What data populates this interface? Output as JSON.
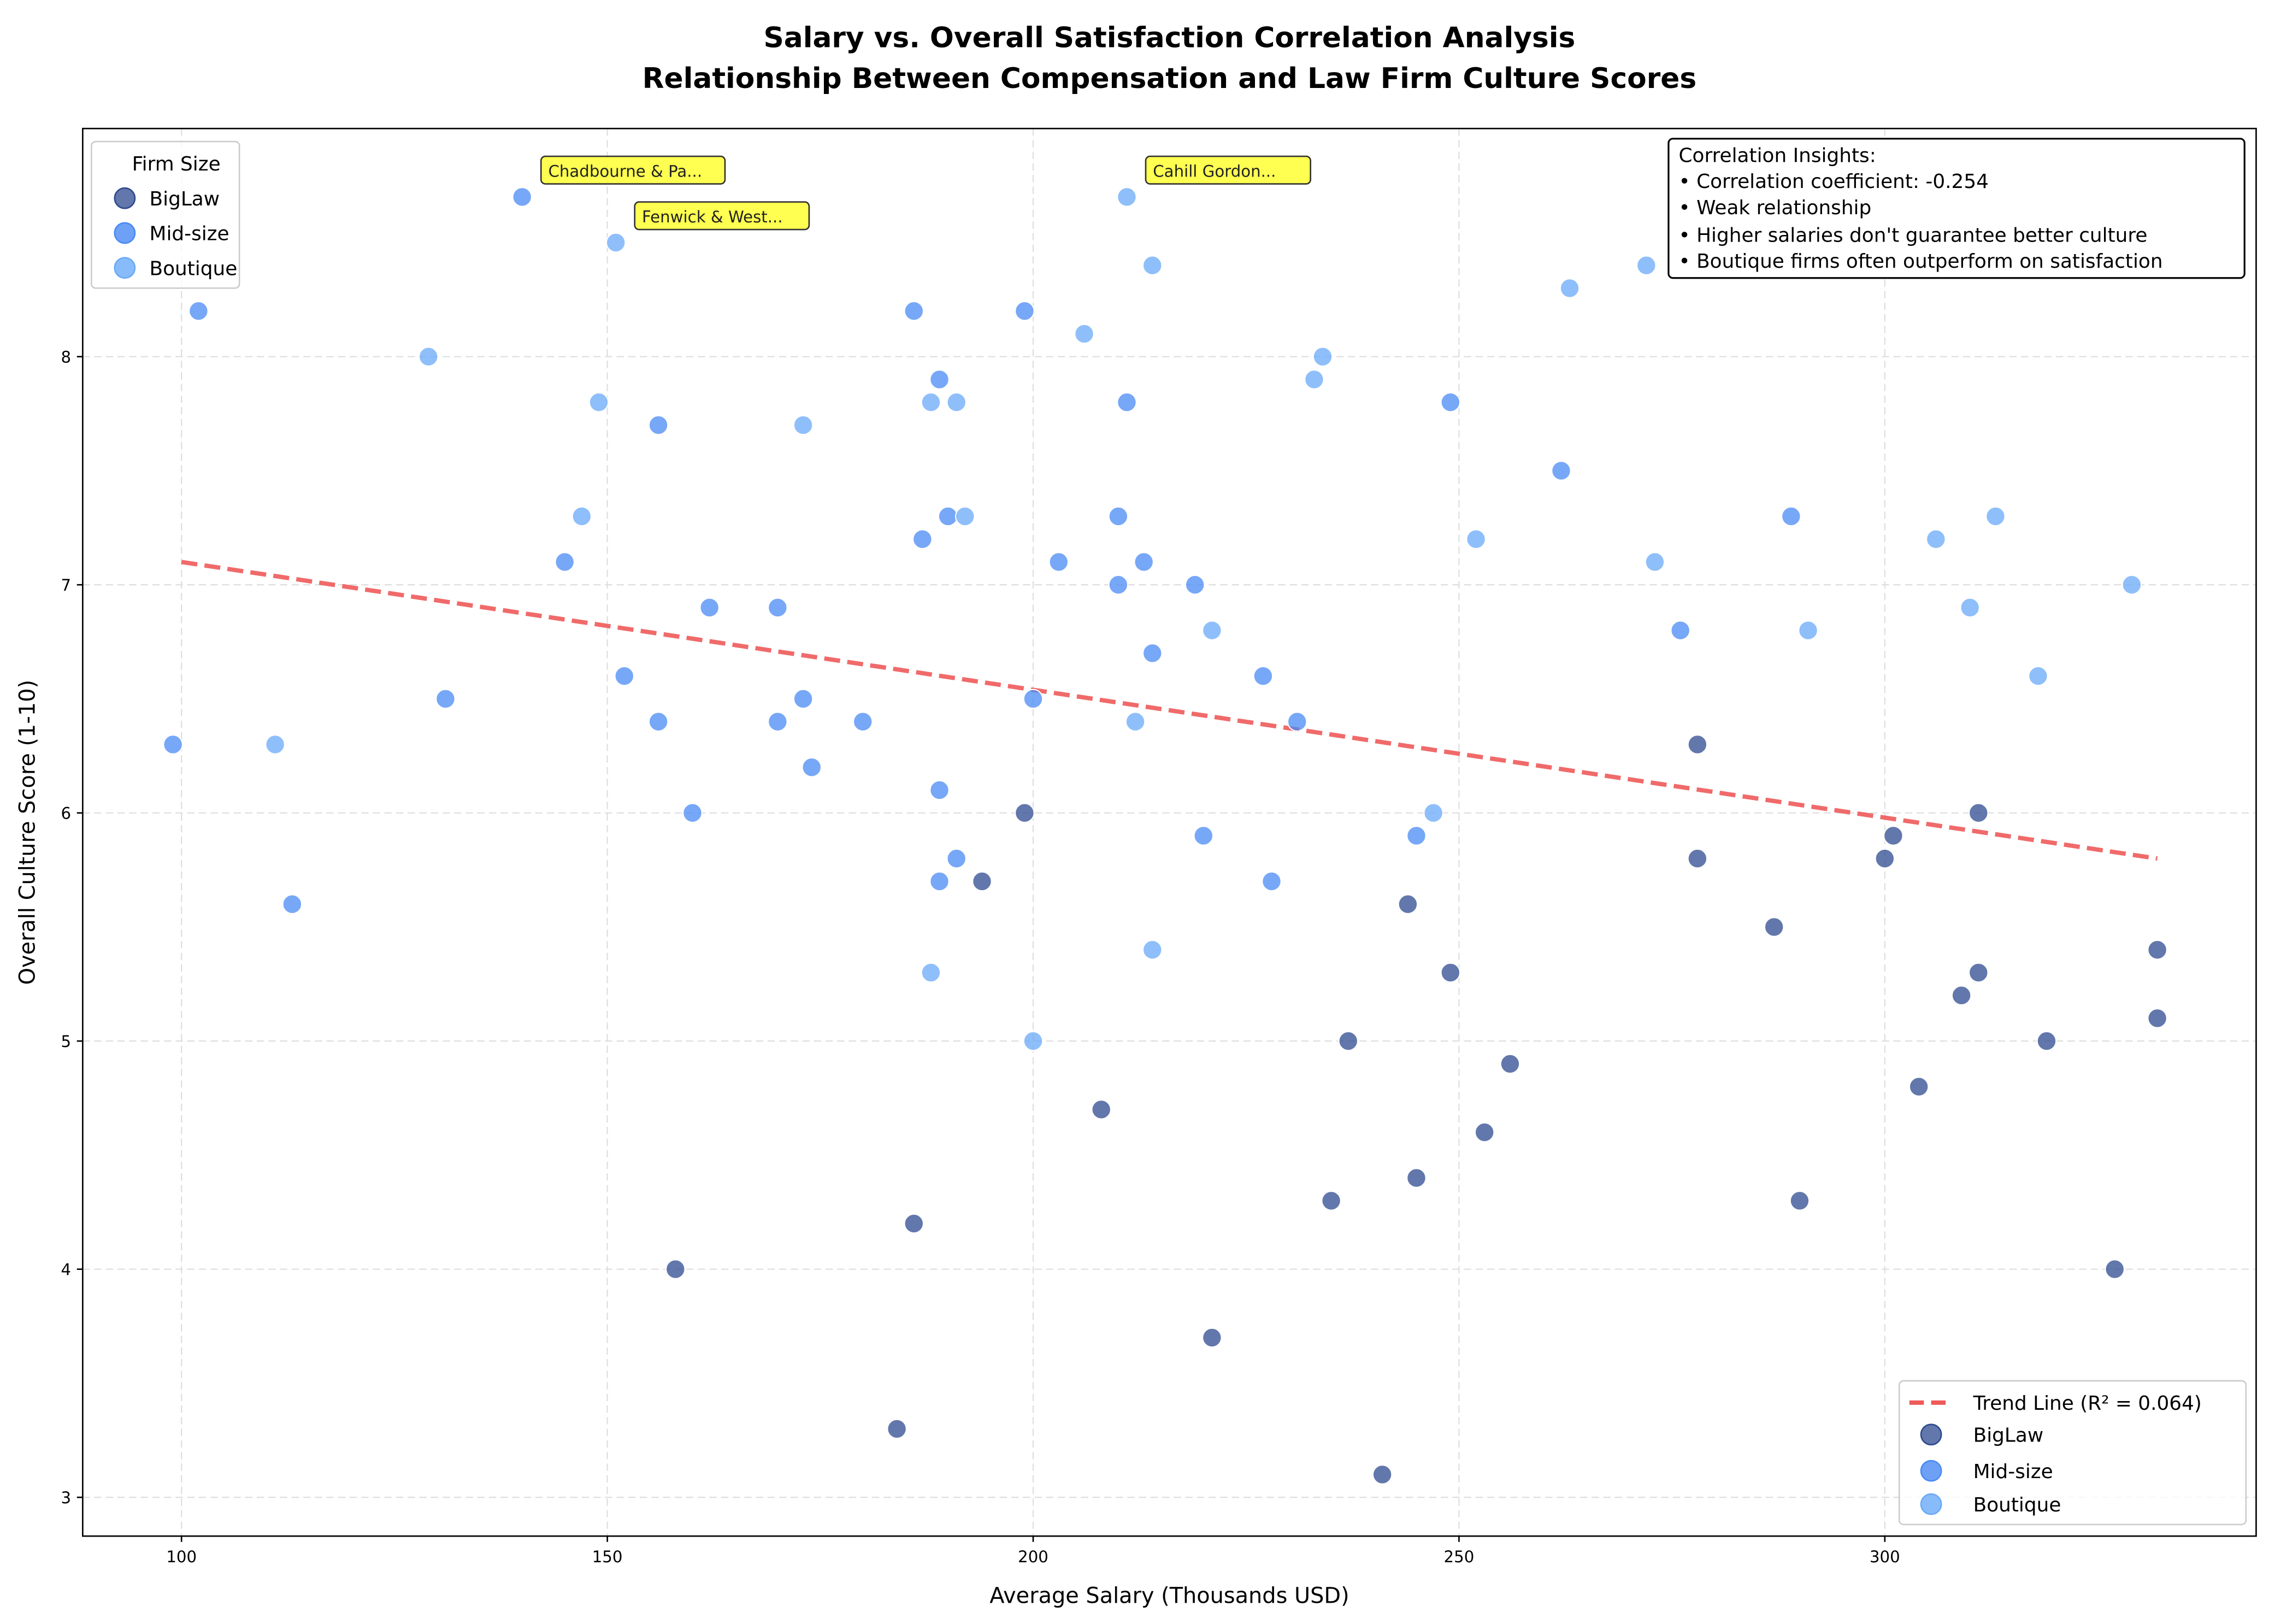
{
  "chart_data": {
    "type": "scatter",
    "title": "Salary vs. Overall Satisfaction Correlation Analysis",
    "subtitle": "Relationship Between Compensation and Law Firm Culture Scores",
    "xlabel": "Average Salary (Thousands USD)",
    "ylabel": "Overall Culture Score (1-10)",
    "xlim": [
      88.4,
      343.6
    ],
    "ylim": [
      2.83,
      9.0
    ],
    "xticks": [
      100,
      150,
      200,
      250,
      300
    ],
    "yticks": [
      3,
      4,
      5,
      6,
      7,
      8
    ],
    "grid": true,
    "legend_title": "Firm Size",
    "legend_placement": "top-left",
    "legend2_placement": "bottom-right",
    "series": [
      {
        "name": "BigLaw",
        "color": "#2e4a8f",
        "points": [
          [
            158,
            4.0
          ],
          [
            186,
            4.2
          ],
          [
            184,
            3.3
          ],
          [
            194,
            5.7
          ],
          [
            199,
            6.0
          ],
          [
            208,
            4.7
          ],
          [
            221,
            3.7
          ],
          [
            235,
            4.3
          ],
          [
            237,
            5.0
          ],
          [
            241,
            3.1
          ],
          [
            244,
            5.6
          ],
          [
            245,
            4.4
          ],
          [
            249,
            5.3
          ],
          [
            253,
            4.6
          ],
          [
            256,
            4.9
          ],
          [
            278,
            6.3
          ],
          [
            278,
            5.8
          ],
          [
            287,
            5.5
          ],
          [
            290,
            4.3
          ],
          [
            300,
            5.8
          ],
          [
            301,
            5.9
          ],
          [
            304,
            4.8
          ],
          [
            309,
            5.2
          ],
          [
            311,
            6.0
          ],
          [
            311,
            5.3
          ],
          [
            319,
            5.0
          ],
          [
            327,
            4.0
          ],
          [
            332,
            5.4
          ],
          [
            332,
            5.1
          ]
        ]
      },
      {
        "name": "Mid-size",
        "color": "#4a8af4",
        "points": [
          [
            99,
            6.3
          ],
          [
            102,
            8.2
          ],
          [
            113,
            5.6
          ],
          [
            131,
            6.5
          ],
          [
            140,
            8.7
          ],
          [
            145,
            7.1
          ],
          [
            152,
            6.6
          ],
          [
            156,
            7.7
          ],
          [
            156,
            6.4
          ],
          [
            160,
            6.0
          ],
          [
            162,
            6.9
          ],
          [
            170,
            6.9
          ],
          [
            170,
            6.4
          ],
          [
            173,
            6.5
          ],
          [
            174,
            6.2
          ],
          [
            180,
            6.4
          ],
          [
            186,
            8.2
          ],
          [
            187,
            7.2
          ],
          [
            189,
            5.7
          ],
          [
            189,
            6.1
          ],
          [
            189,
            7.9
          ],
          [
            190,
            7.3
          ],
          [
            191,
            5.8
          ],
          [
            199,
            8.2
          ],
          [
            200,
            6.5
          ],
          [
            203,
            7.1
          ],
          [
            210,
            7.3
          ],
          [
            210,
            7.0
          ],
          [
            211,
            7.8
          ],
          [
            213,
            7.1
          ],
          [
            214,
            6.7
          ],
          [
            219,
            7.0
          ],
          [
            220,
            5.9
          ],
          [
            227,
            6.6
          ],
          [
            228,
            5.7
          ],
          [
            231,
            6.4
          ],
          [
            245,
            5.9
          ],
          [
            249,
            7.8
          ],
          [
            262,
            7.5
          ],
          [
            276,
            6.8
          ],
          [
            289,
            7.3
          ]
        ]
      },
      {
        "name": "Boutique",
        "color": "#6aaaf8",
        "points": [
          [
            111,
            6.3
          ],
          [
            129,
            8.0
          ],
          [
            147,
            7.3
          ],
          [
            149,
            7.8
          ],
          [
            151,
            8.5
          ],
          [
            173,
            7.7
          ],
          [
            188,
            7.8
          ],
          [
            188,
            5.3
          ],
          [
            191,
            7.8
          ],
          [
            192,
            7.3
          ],
          [
            200,
            5.0
          ],
          [
            206,
            8.1
          ],
          [
            211,
            8.7
          ],
          [
            212,
            6.4
          ],
          [
            214,
            8.4
          ],
          [
            214,
            5.4
          ],
          [
            221,
            6.8
          ],
          [
            233,
            7.9
          ],
          [
            234,
            8.0
          ],
          [
            247,
            6.0
          ],
          [
            252,
            7.2
          ],
          [
            263,
            8.3
          ],
          [
            272,
            8.4
          ],
          [
            273,
            7.1
          ],
          [
            291,
            6.8
          ],
          [
            306,
            7.2
          ],
          [
            310,
            6.9
          ],
          [
            313,
            7.3
          ],
          [
            318,
            6.6
          ],
          [
            329,
            7.0
          ]
        ]
      }
    ],
    "trend_line": {
      "name": "Trend Line (R² = 0.064)",
      "color": "#ee5a5a",
      "x": [
        100,
        332
      ],
      "y": [
        7.1,
        5.8
      ]
    },
    "annotations": [
      {
        "text": "Chadbourne & Pa...",
        "x": 140,
        "y": 8.7
      },
      {
        "text": "Fenwick & West...",
        "x": 151,
        "y": 8.5
      },
      {
        "text": "Cahill Gordon...",
        "x": 211,
        "y": 8.7
      }
    ],
    "insights": {
      "heading": "Correlation Insights:",
      "lines": [
        "• Correlation coefficient: -0.254",
        "• Weak relationship",
        "• Higher salaries don't guarantee better culture",
        "• Boutique firms often outperform on satisfaction"
      ]
    }
  }
}
